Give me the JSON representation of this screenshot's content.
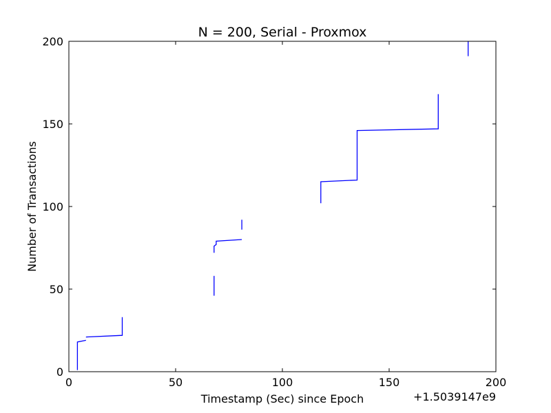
{
  "chart_data": {
    "type": "line",
    "title": "N = 200, Serial - Proxmox",
    "xlabel": "Timestamp (Sec) since Epoch",
    "ylabel": "Number of Transactions",
    "x_offset_label": "+1.5039147e9",
    "xlim": [
      0,
      200
    ],
    "ylim": [
      0,
      200
    ],
    "xticks": [
      0,
      50,
      100,
      150,
      200
    ],
    "yticks": [
      0,
      50,
      100,
      150,
      200
    ],
    "xtick_labels": [
      "0",
      "50",
      "100",
      "150",
      "200"
    ],
    "ytick_labels": [
      "0",
      "50",
      "100",
      "150",
      "200"
    ],
    "grid": false,
    "line_color": "#0000ff",
    "segments": [
      [
        [
          4,
          1
        ],
        [
          4,
          18
        ],
        [
          8,
          19
        ]
      ],
      [
        [
          8,
          21
        ],
        [
          25,
          22
        ],
        [
          25,
          33
        ]
      ],
      [
        [
          68,
          46
        ],
        [
          68,
          58
        ]
      ],
      [
        [
          68,
          72
        ],
        [
          68,
          76
        ],
        [
          69,
          77
        ],
        [
          69,
          79
        ],
        [
          81,
          80
        ]
      ],
      [
        [
          81,
          86
        ],
        [
          81,
          92
        ]
      ],
      [
        [
          118,
          102
        ],
        [
          118,
          115
        ],
        [
          135,
          116
        ],
        [
          135,
          146
        ],
        [
          173,
          147
        ],
        [
          173,
          168
        ]
      ],
      [
        [
          187,
          191
        ],
        [
          187,
          200
        ]
      ]
    ]
  }
}
